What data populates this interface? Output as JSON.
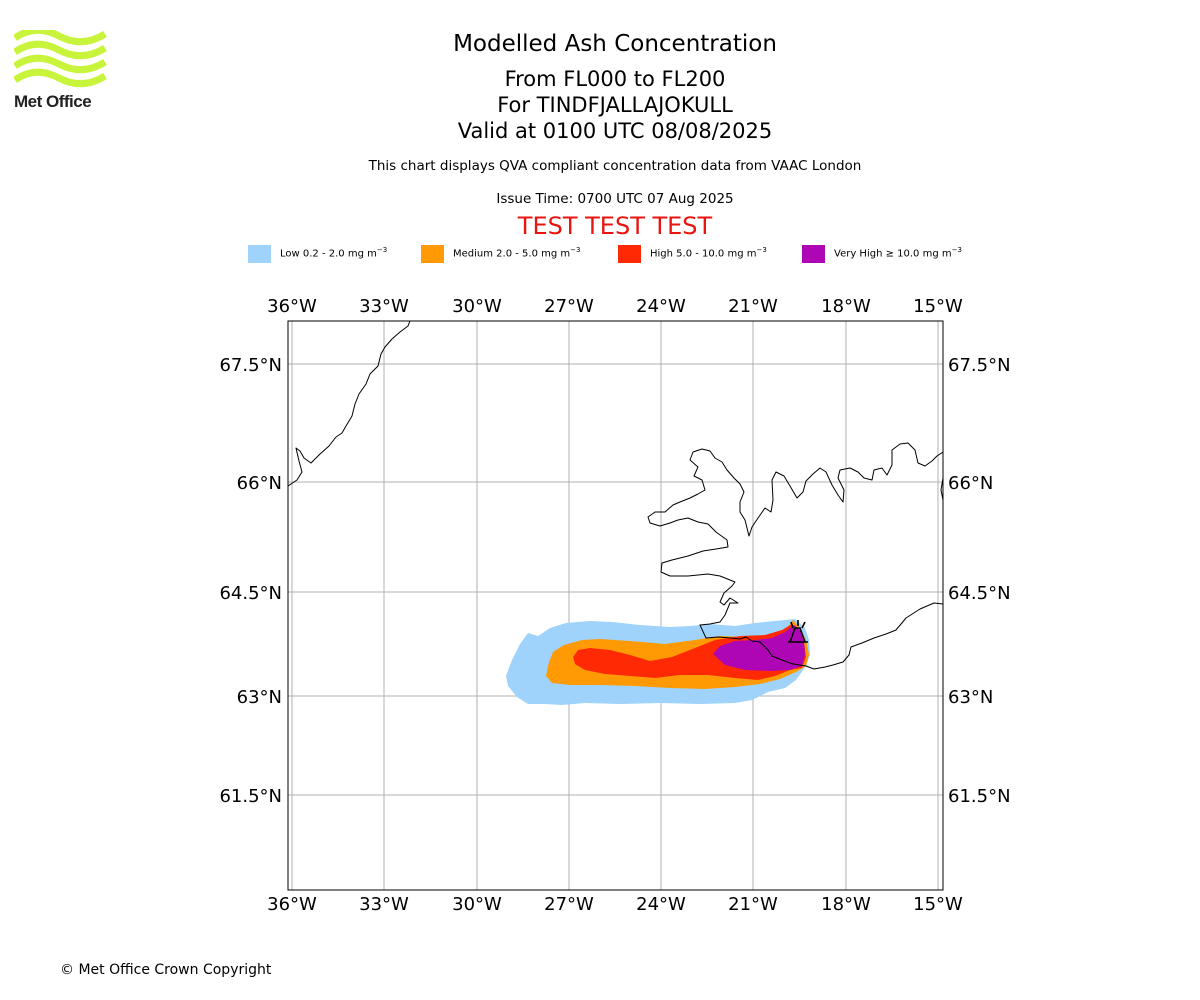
{
  "logo": {
    "text": "Met Office",
    "color": "#c8f53c"
  },
  "titles": {
    "main": "Modelled Ash Concentration",
    "levels": "From FL000 to FL200",
    "volcano": "For TINDFJALLAJOKULL",
    "valid": "Valid at 0100 UTC 08/08/2025",
    "compliance_note": "This chart displays QVA compliant concentration data from VAAC London",
    "issue_time": "Issue Time: 0700 UTC 07 Aug 2025",
    "test_banner": "TEST TEST TEST"
  },
  "legend": [
    {
      "label": "Low 0.2 - 2.0 mg m",
      "unit_sup": "−3",
      "color": "#9fd3fb"
    },
    {
      "label": "Medium 2.0 - 5.0 mg m",
      "unit_sup": "−3",
      "color": "#ff9a05"
    },
    {
      "label": "High 5.0 - 10.0 mg m",
      "unit_sup": "−3",
      "color": "#ff2a03"
    },
    {
      "label": "Very High  ≥  10.0 mg m",
      "unit_sup": "−3",
      "color": "#ae05b5"
    }
  ],
  "map": {
    "lon_labels": [
      "36°W",
      "33°W",
      "30°W",
      "27°W",
      "24°W",
      "21°W",
      "18°W",
      "15°W"
    ],
    "lat_labels": [
      "67.5°N",
      "66°N",
      "64.5°N",
      "63°N",
      "61.5°N"
    ],
    "grid": true,
    "coastline_color": "#000000",
    "grid_color": "#b0b0b0"
  },
  "footer": "© Met Office Crown Copyright"
}
